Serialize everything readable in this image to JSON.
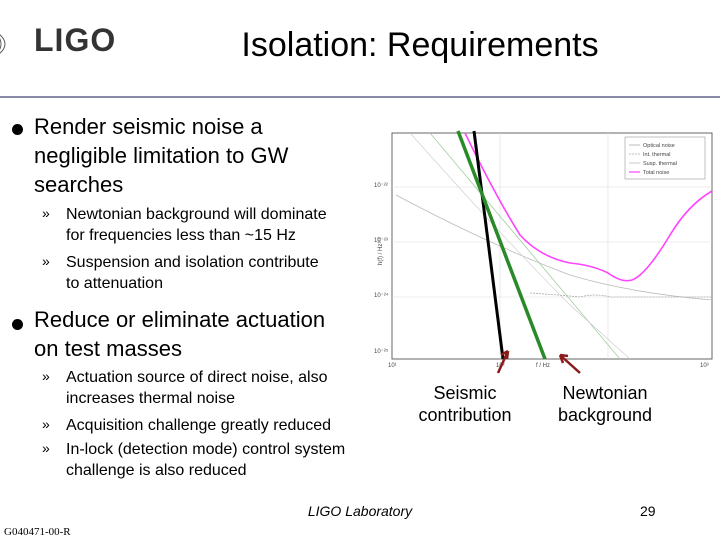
{
  "logo": {
    "text": "LIGO"
  },
  "title": "Isolation: Requirements",
  "bullets": [
    {
      "text_lines": [
        "Render seismic noise a",
        "negligible limitation to GW",
        "searches"
      ],
      "sub": [
        {
          "lines": [
            "Newtonian background will dominate",
            "for frequencies less than ~15 Hz"
          ]
        },
        {
          "lines": [
            "Suspension and isolation contribute",
            "to attenuation"
          ]
        }
      ]
    },
    {
      "text_lines": [
        "Reduce or eliminate actuation",
        "on test masses"
      ],
      "sub": [
        {
          "lines": [
            "Actuation source of direct noise, also",
            "increases thermal noise"
          ]
        },
        {
          "lines": [
            "Acquisition challenge greatly reduced"
          ]
        },
        {
          "lines": [
            "In-lock (detection mode) control system",
            "challenge is also reduced"
          ]
        }
      ]
    }
  ],
  "chevron": "»",
  "figure": {
    "legend": [
      "Optical noise",
      "Int. thermal",
      "Susp. thermal",
      "Total noise"
    ],
    "y_ticks": [
      "10⁻²²",
      "10⁻²³",
      "10⁻²⁴",
      "10⁻²⁵"
    ],
    "x_ticks": [
      "10¹",
      "10²",
      "10³"
    ],
    "ylabel": "h(f) / Hz¹ᐟ²",
    "xlabel": "f / Hz",
    "colors": {
      "total": "#ff44ff",
      "seismic": "#000000",
      "newtonian": "#2a8a2a",
      "arrow": "#8b1a1a"
    }
  },
  "annotations": {
    "seismic": [
      "Seismic",
      "contribution"
    ],
    "newtonian": [
      "Newtonian",
      "background"
    ]
  },
  "footer": {
    "lab": "LIGO Laboratory",
    "page": "29",
    "doc_id": "G040471-00-R"
  }
}
